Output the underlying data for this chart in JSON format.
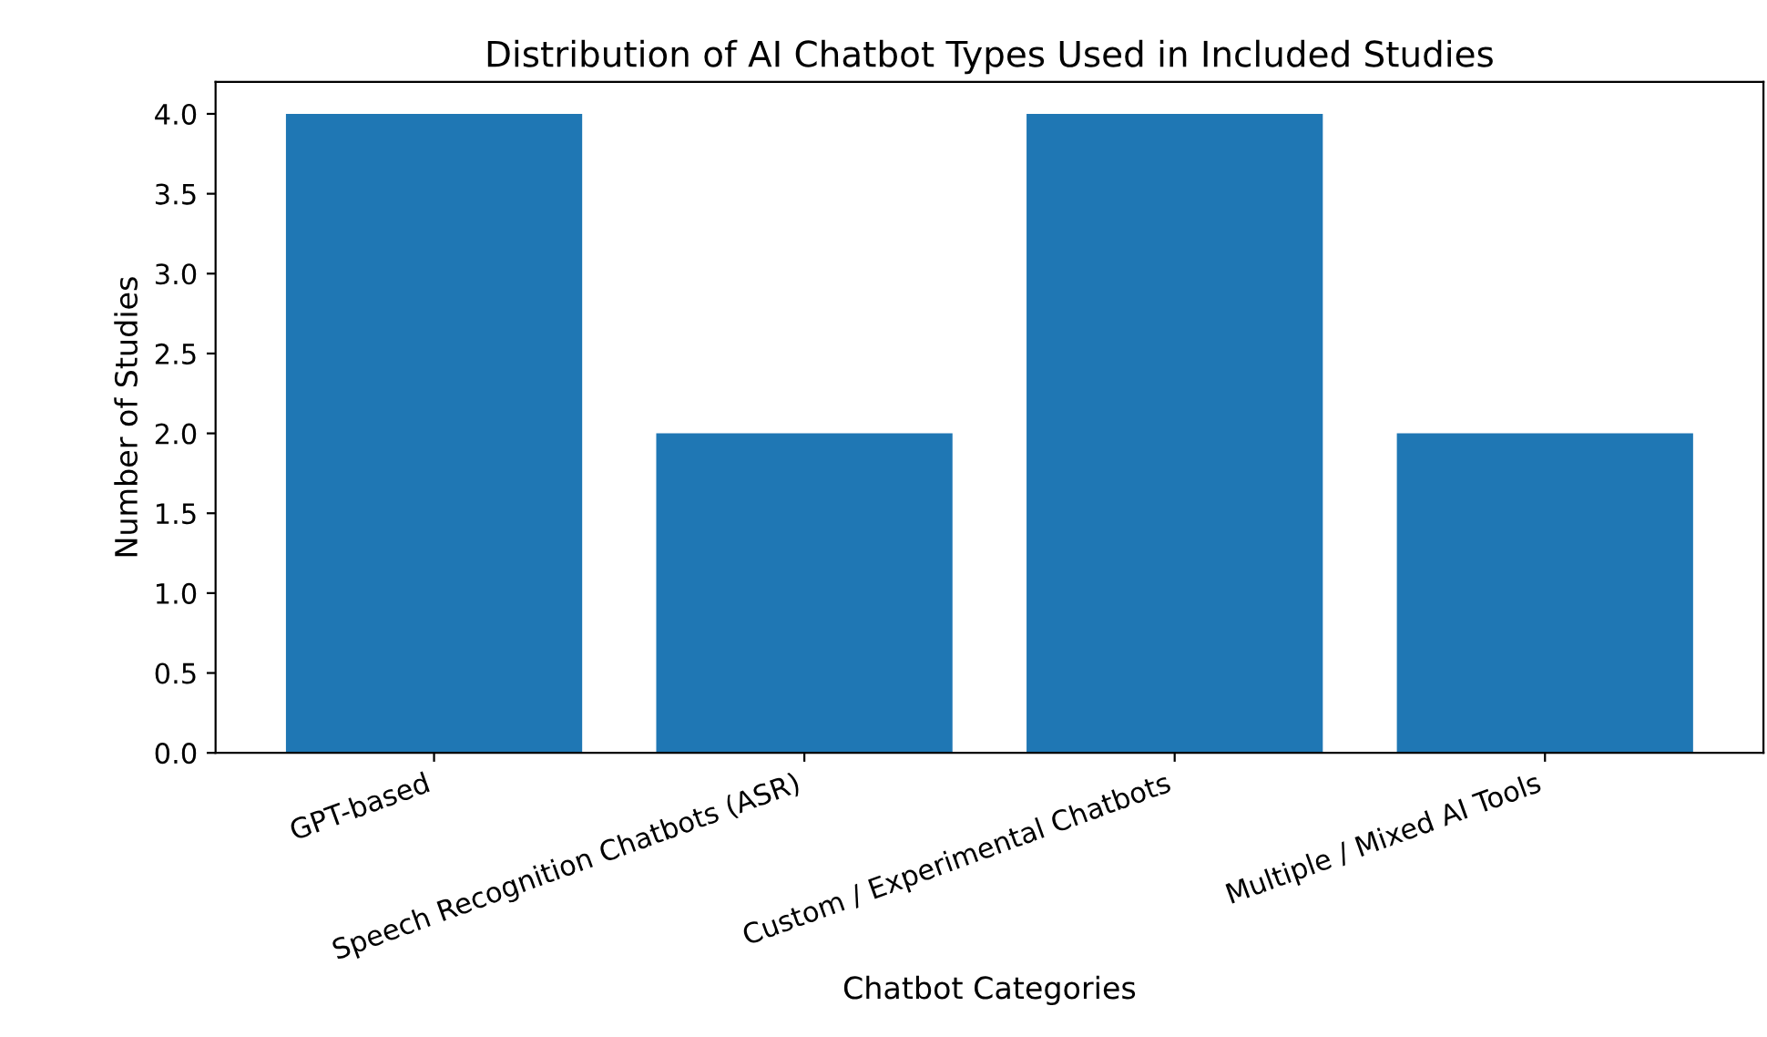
{
  "chart_data": {
    "type": "bar",
    "title": "Distribution of AI Chatbot Types Used in Included Studies",
    "xlabel": "Chatbot Categories",
    "ylabel": "Number of Studies",
    "categories": [
      "GPT-based",
      "Speech Recognition Chatbots (ASR)",
      "Custom / Experimental Chatbots",
      "Multiple / Mixed AI Tools"
    ],
    "values": [
      4,
      2,
      4,
      2
    ],
    "color": "#1f77b4",
    "ylim": [
      0,
      4.2
    ],
    "yticks": [
      {
        "value": 0,
        "label": "0.0"
      },
      {
        "value": 0.5,
        "label": "0.5"
      },
      {
        "value": 1,
        "label": "1.0"
      },
      {
        "value": 1.5,
        "label": "1.5"
      },
      {
        "value": 2,
        "label": "2.0"
      },
      {
        "value": 2.5,
        "label": "2.5"
      },
      {
        "value": 3,
        "label": "3.0"
      },
      {
        "value": 3.5,
        "label": "3.5"
      },
      {
        "value": 4,
        "label": "4.0"
      }
    ],
    "grid": false,
    "legend": false
  }
}
